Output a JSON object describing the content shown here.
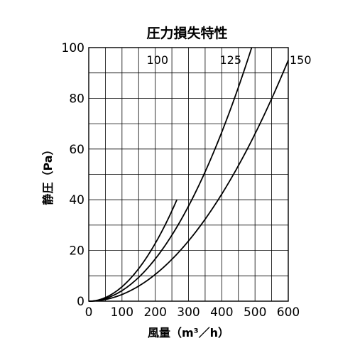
{
  "chart_data": {
    "type": "line",
    "title": "圧力損失特性",
    "xlabel": "風量（m³／h）",
    "ylabel": "静圧（Pa）",
    "xlim": [
      0,
      600
    ],
    "ylim": [
      0,
      100
    ],
    "xticks": [
      "0",
      "100",
      "200",
      "300",
      "400",
      "500",
      "600"
    ],
    "yticks": [
      "0",
      "20",
      "40",
      "60",
      "80",
      "100"
    ],
    "grid": true,
    "series": [
      {
        "name": "100",
        "x": [
          0,
          50,
          100,
          150,
          200,
          250,
          265
        ],
        "y": [
          0,
          1.4,
          5.7,
          12.8,
          22.8,
          35.6,
          40
        ]
      },
      {
        "name": "125",
        "x": [
          0,
          100,
          200,
          300,
          400,
          490
        ],
        "y": [
          0,
          4.2,
          16.7,
          37.5,
          66.7,
          100
        ]
      },
      {
        "name": "150",
        "x": [
          0,
          100,
          200,
          300,
          400,
          500,
          600
        ],
        "y": [
          0,
          2.6,
          10.6,
          23.8,
          42.2,
          66,
          95
        ]
      }
    ]
  }
}
